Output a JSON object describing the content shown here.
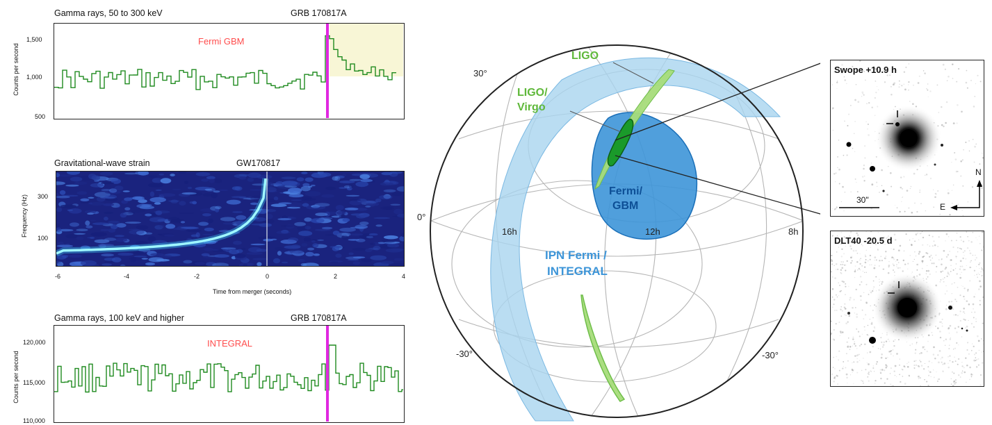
{
  "panel1": {
    "title": "Gamma rays, 50 to 300 keV",
    "event": "GRB 170817A",
    "instrument": "Fermi GBM",
    "ylabel": "Counts per second",
    "yticks": [
      "1,500",
      "1,000",
      "500"
    ]
  },
  "panel2": {
    "title": "Gravitational-wave strain",
    "event": "GW170817",
    "ylabel": "Frequency (Hz)",
    "yticks": [
      "300",
      "100"
    ],
    "xticks": [
      "-6",
      "-4",
      "-2",
      "0",
      "2",
      "4"
    ],
    "xlabel": "Time from merger (seconds)"
  },
  "panel3": {
    "title": "Gamma rays, 100 keV and higher",
    "event": "GRB 170817A",
    "instrument": "INTEGRAL",
    "ylabel": "Counts per second",
    "yticks": [
      "120,000",
      "115,000",
      "110,000"
    ]
  },
  "sky": {
    "dec_labels": [
      "30°",
      "0°",
      "-30°",
      "-30°"
    ],
    "ra_labels": [
      "16h",
      "12h",
      "8h"
    ],
    "regions": {
      "ligo": "LIGO",
      "ligo_virgo_1": "LIGO/",
      "ligo_virgo_2": "Virgo",
      "fermi_1": "Fermi/",
      "fermi_2": "GBM",
      "ipn_1": "IPN Fermi /",
      "ipn_2": "INTEGRAL"
    }
  },
  "images": {
    "swope": {
      "label": "Swope +10.9 h",
      "scale": "30\"",
      "north": "N",
      "east": "E"
    },
    "dlt40": {
      "label": "DLT40 -20.5 d"
    }
  },
  "colors": {
    "gamma_trace": "#1e8a1e",
    "merger_line": "#e028e0",
    "instrument_text": "#ff4d4d",
    "ipn_band": "#a9d4ef",
    "fermi_region": "#3d95d8",
    "ligo_light": "#a6dc7a",
    "ligo_dark": "#1a9a2a",
    "spectrogram_bg": "#1a237e"
  }
}
